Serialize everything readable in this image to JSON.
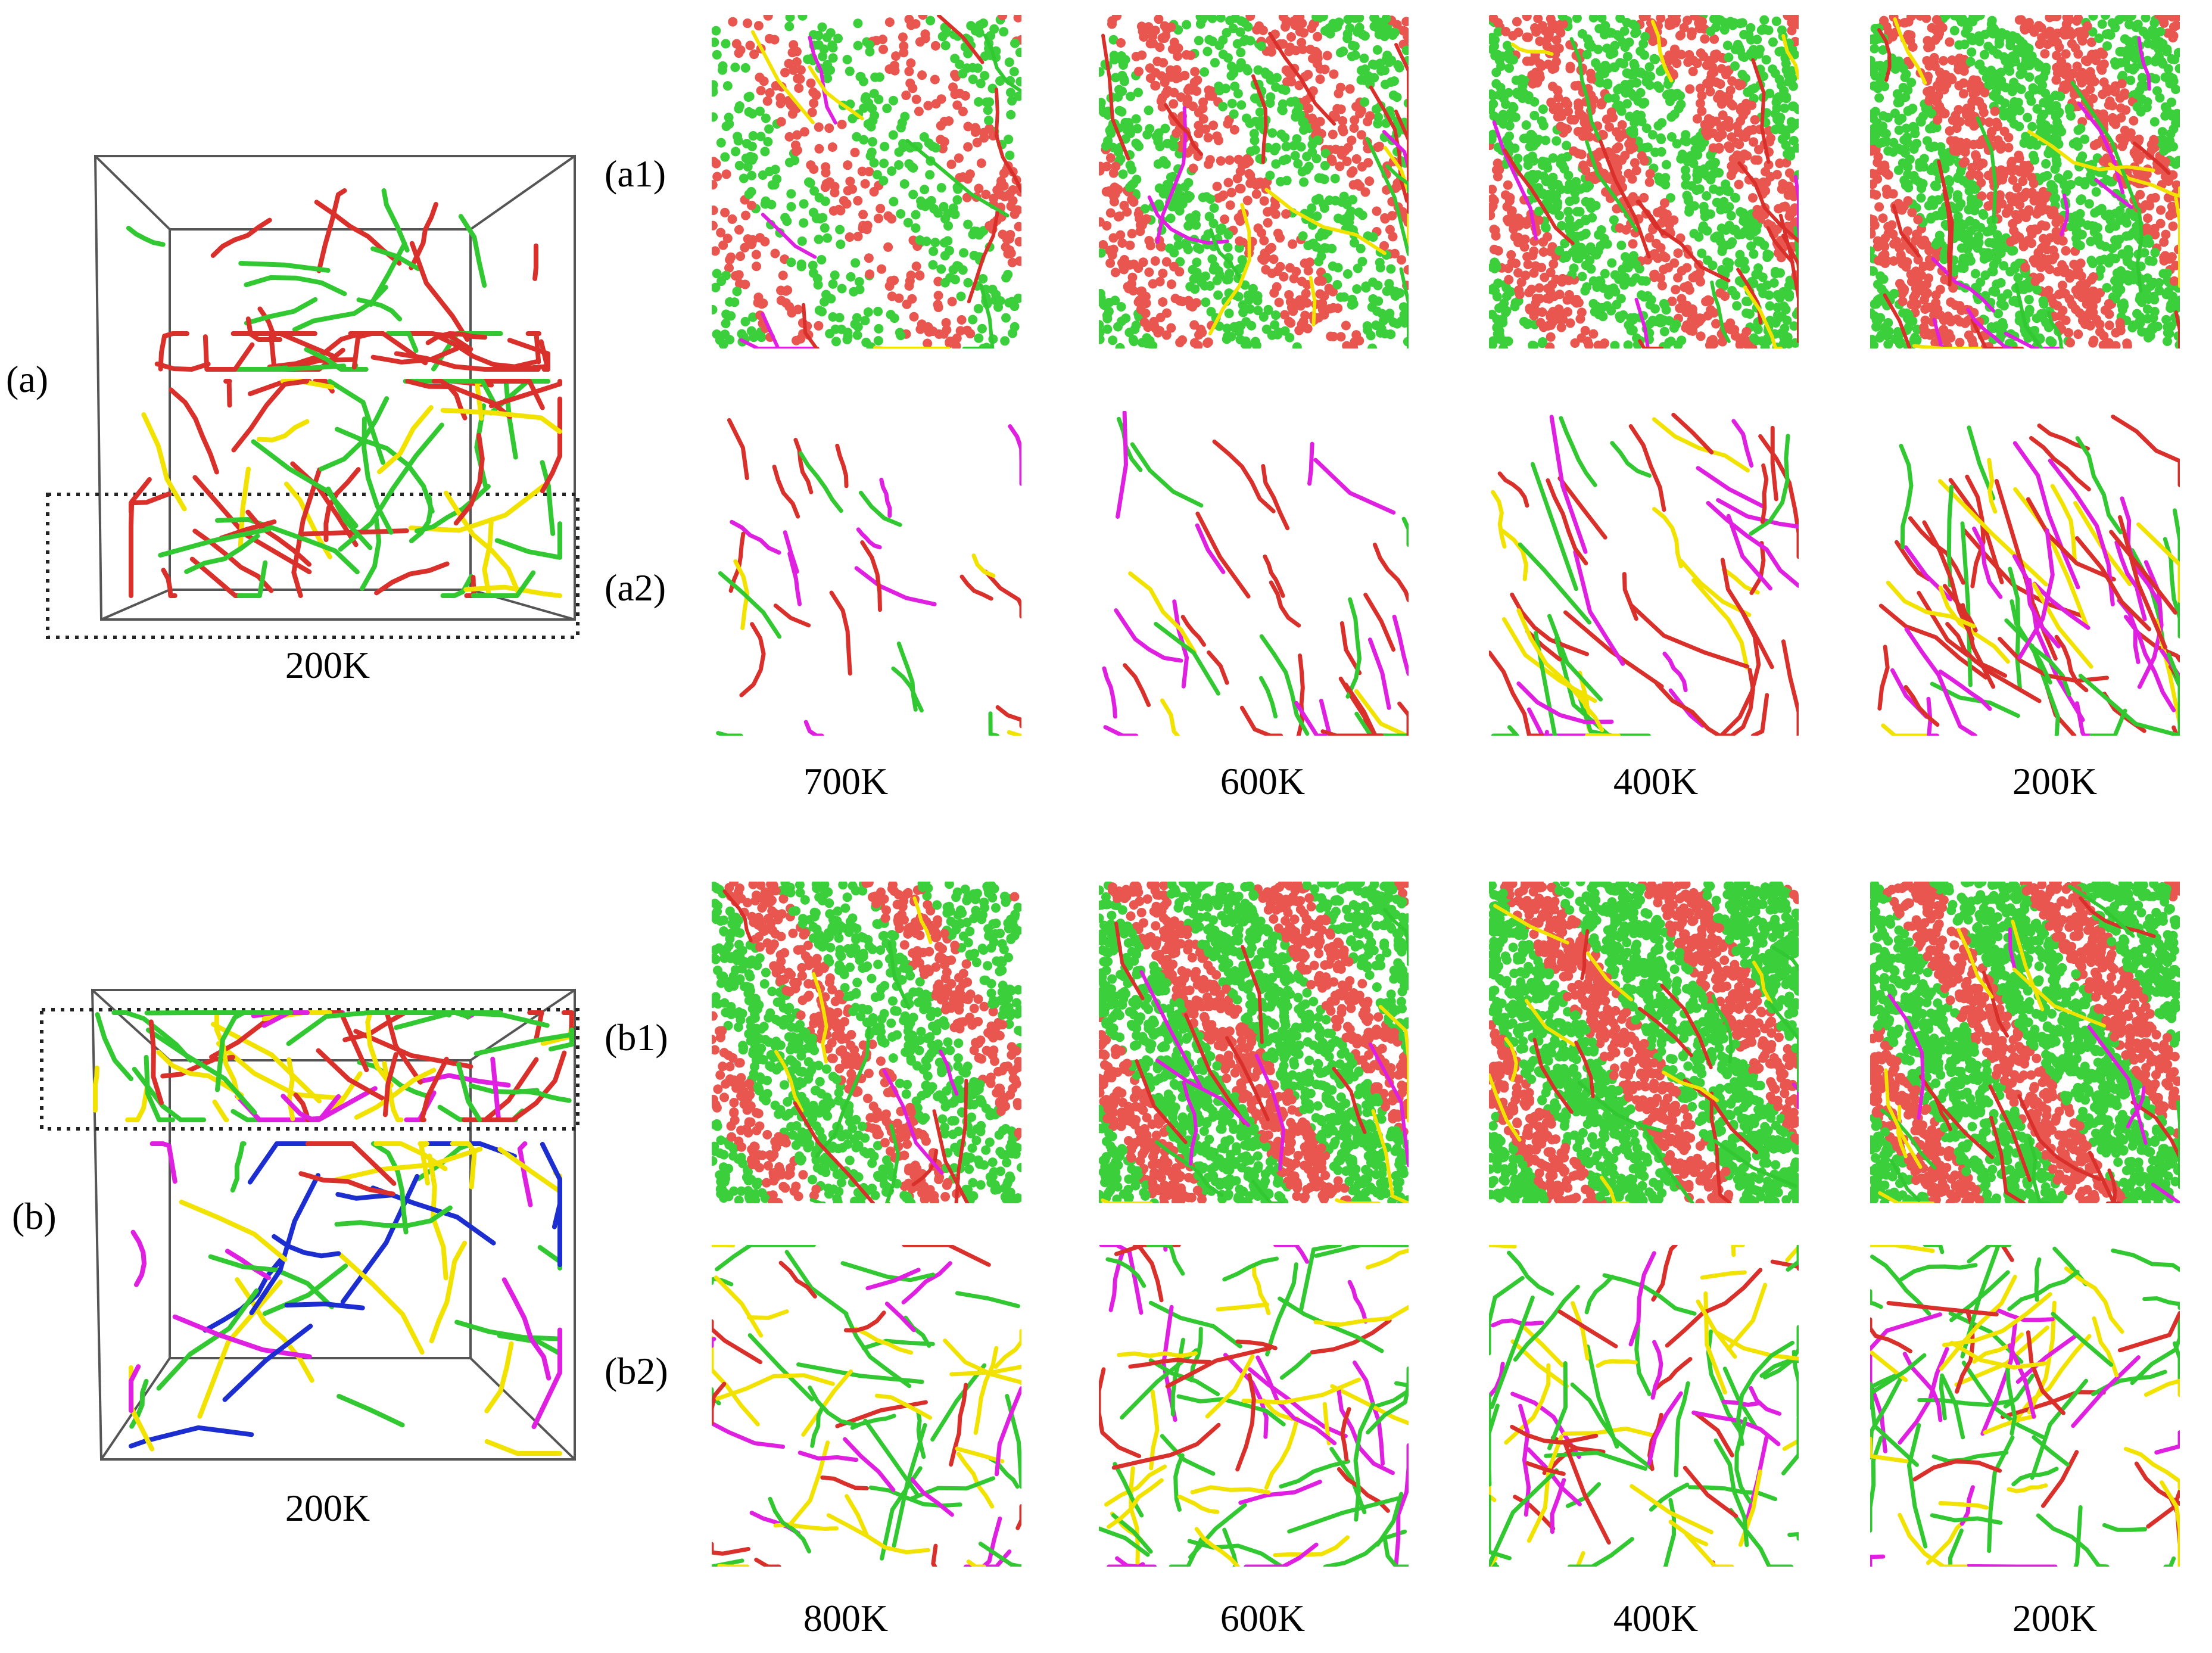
{
  "labels": {
    "a": "(a)",
    "b": "(b)",
    "a1": "(a1)",
    "a2": "(a2)",
    "b1": "(b1)",
    "b2": "(b2)"
  },
  "box_a_temp": "200K",
  "box_b_temp": "200K",
  "row_a_temps": [
    "700K",
    "600K",
    "400K",
    "200K"
  ],
  "row_b_temps": [
    "800K",
    "600K",
    "400K",
    "200K"
  ],
  "colors": {
    "red": "#d9302b",
    "green": "#32c832",
    "yellow": "#f2e200",
    "magenta": "#e020e0",
    "blue": "#1c2ecf",
    "atom_red": "#e8564f",
    "atom_green": "#3ccf3c"
  }
}
